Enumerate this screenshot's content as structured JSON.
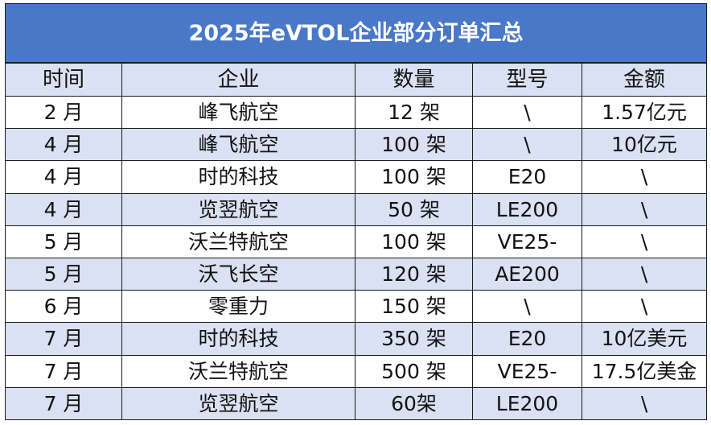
{
  "table": {
    "title": "2025年eVTOL企业部分订单汇总",
    "headers": [
      "时间",
      "企业",
      "数量",
      "型号",
      "金额"
    ],
    "rows": [
      [
        "2 月",
        "峰飞航空",
        "12 架",
        "\\",
        "1.57亿元"
      ],
      [
        "4 月",
        "峰飞航空",
        "100 架",
        "\\",
        "10亿元"
      ],
      [
        "4 月",
        "时的科技",
        "100 架",
        "E20",
        "\\"
      ],
      [
        "4 月",
        "览翌航空",
        "50 架",
        "LE200",
        "\\"
      ],
      [
        "5 月",
        "沃兰特航空",
        "100 架",
        "VE25-",
        "\\"
      ],
      [
        "5 月",
        "沃飞长空",
        "120 架",
        "AE200",
        "\\"
      ],
      [
        "6 月",
        "零重力",
        "150 架",
        "\\",
        "\\"
      ],
      [
        "7 月",
        "时的科技",
        "350 架",
        "E20",
        "10亿美元"
      ],
      [
        "7 月",
        "沃兰特航空",
        "500 架",
        "VE25-",
        "17.5亿美金"
      ],
      [
        "7 月",
        "览翌航空",
        "60架",
        "LE200",
        "\\"
      ]
    ]
  },
  "colors": {
    "title_bg": "#4a78c8",
    "stripe": "#d9e1f2",
    "border": "#1a1a1a"
  }
}
